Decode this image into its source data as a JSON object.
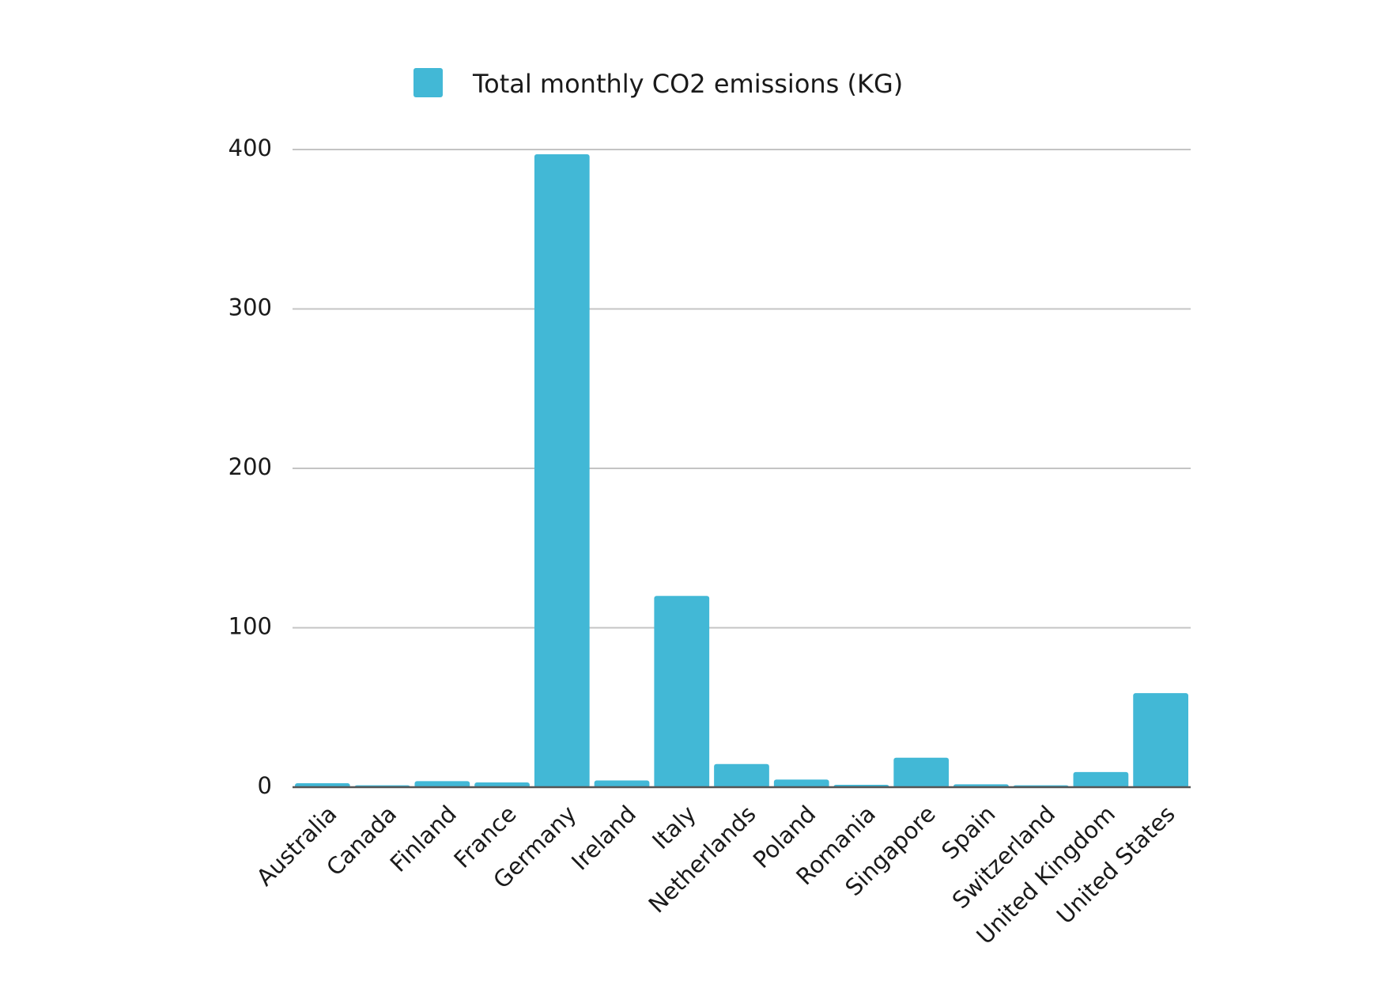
{
  "chart_data": {
    "type": "bar",
    "categories": [
      "Australia",
      "Canada",
      "Finland",
      "France",
      "Germany",
      "Ireland",
      "Italy",
      "Netherlands",
      "Poland",
      "Romania",
      "Singapore",
      "Spain",
      "Switzerland",
      "United Kingdom",
      "United States"
    ],
    "series": [
      {
        "name": "Total monthly CO2 emissions (KG)",
        "color": "#42b8d6",
        "values": [
          2.5,
          1.2,
          3.8,
          3.0,
          397,
          4.2,
          120,
          14.5,
          4.8,
          1.5,
          18.5,
          1.8,
          1.2,
          9.5,
          59
        ]
      }
    ],
    "y_ticks": [
      "0",
      "100",
      "200",
      "300",
      "400"
    ],
    "ylim": [
      0,
      400
    ],
    "grid": true,
    "legend_position": "top-center",
    "title": "",
    "xlabel": "",
    "ylabel": ""
  }
}
